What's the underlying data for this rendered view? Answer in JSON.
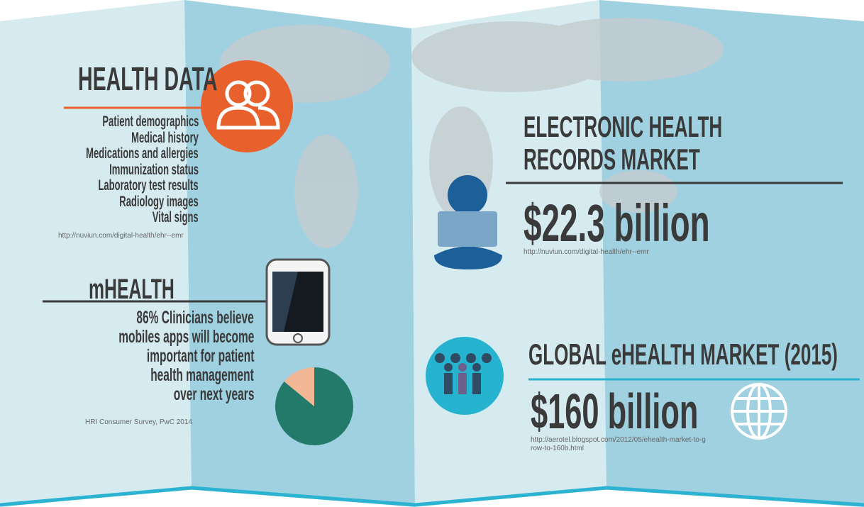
{
  "health_data": {
    "title": "HEALTH DATA",
    "items": [
      "Patient demographics",
      "Medical history",
      "Medications and allergies",
      "Immunization status",
      "Laboratory test results",
      "Radiology images",
      "Vital signs"
    ],
    "source": "http://nuviun.com/digital-health/ehr--emr"
  },
  "mhealth": {
    "title": "mHEALTH",
    "lines": [
      "86% Clinicians believe",
      "mobiles apps will become",
      "important for patient",
      "health management",
      "over next years"
    ],
    "source": "HRI Consumer Survey, PwC 2014",
    "pie": {
      "type": "pie",
      "values": [
        86,
        14
      ],
      "colors": [
        "#237a6a",
        "#f2b896"
      ]
    }
  },
  "ehr": {
    "title": [
      "ELECTRONIC HEALTH",
      "RECORDS MARKET"
    ],
    "value": "$22.3 billion",
    "source": "http://nuviun.com/digital-health/ehr--emr"
  },
  "ehealth": {
    "title": "GLOBAL eHEALTH MARKET (2015)",
    "value": "$160 billion",
    "source": "http://aerotel.blogspot.com/2012/05/ehealth-market-to-grow-to-160b.html"
  }
}
